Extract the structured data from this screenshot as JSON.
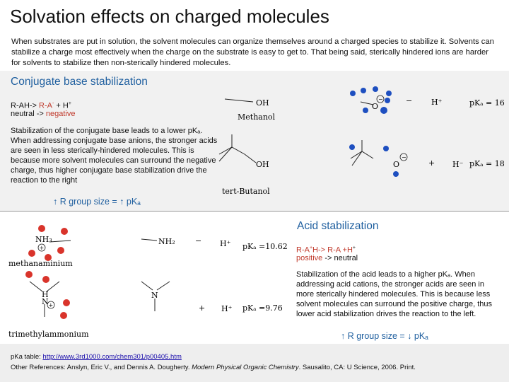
{
  "title": "Solvation effects on charged molecules",
  "intro": "When substrates are put in solution, the solvent molecules can organize themselves around a charged species to stabilize it. Solvents can stabilize a charge most effectively when the charge on the substrate is easy to get to. That being said, sterically hindered ions are harder for solvents to stabilize then non-sterically hindered molecules.",
  "conjugate": {
    "heading": "Conjugate base stabilization",
    "reaction_lhs": "R-AH-> ",
    "reaction_base": "R-A",
    "reaction_base_sup": "-",
    "reaction_rhs": " + H",
    "reaction_rhs_sup": "+",
    "neutral_label": "neutral -> ",
    "negative_label": "negative",
    "paragraph": "Stabilization of the conjugate base leads to a lower pKₐ. When addressing conjugate base anions, the stronger acids are seen in less sterically-hindered molecules. This is because more solvent molecules can surround the negative charge, thus higher conjugate base stabilization drive the reaction to the right",
    "trend": "↑ R group size = ↑ pKₐ",
    "methanol_label": "Methanol",
    "tbutanol_label": "tert-Butanol",
    "oh_label": "OH",
    "o_label": "O",
    "minus_sign": "−",
    "plus_sign": "+",
    "h_plus": "H⁺",
    "h_minus": "H⁻",
    "pka_1": "pKₐ = 16",
    "pka_2": "pKₐ = 18"
  },
  "acid": {
    "heading": "Acid stabilization",
    "reaction_lhs": "R-A",
    "reaction_sup": "+",
    "reaction_h": "H-> R-A +H",
    "reaction_h_sup": "+",
    "positive_label": "positive",
    "neutral_label": " -> neutral",
    "paragraph": "Stabilization of the acid leads to a higher pKₐ. When addressing acid cations, the stronger acids are seen in more sterically hindered molecules. This is because less solvent molecules can surround the positive charge, thus lower acid stabilization drives the reaction to the left.",
    "trend": "↑ R group size = ↓ pKₐ",
    "nh3_label": "NH₃",
    "nh2_label": "NH₂",
    "n_label": "N",
    "h_label": "H",
    "methanaminium_label": "methanaminium",
    "trimethylammonium_label": "trimethylammonium",
    "pka_1": "pKₐ =10.62",
    "pka_2": "pKₐ =9.76",
    "minus_sign": "−",
    "plus_sign": "+",
    "h_plus": "H⁺"
  },
  "footer": {
    "pka_prefix": "pKa table: ",
    "pka_link": "http://www.3rd1000.com/chem301/p00405.htm",
    "refs_prefix": "Other References: Anslyn, Eric V., and Dennis A. Dougherty. ",
    "refs_title": "Modern Physical Organic Chemistry",
    "refs_suffix": ". Sausalito, CA: U Science, 2006. Print."
  },
  "colors": {
    "heading_blue": "#1f5f9f",
    "accent_red": "#c0392b",
    "solvent_blue": "#1e4fc0",
    "solvent_red": "#d9342b"
  }
}
